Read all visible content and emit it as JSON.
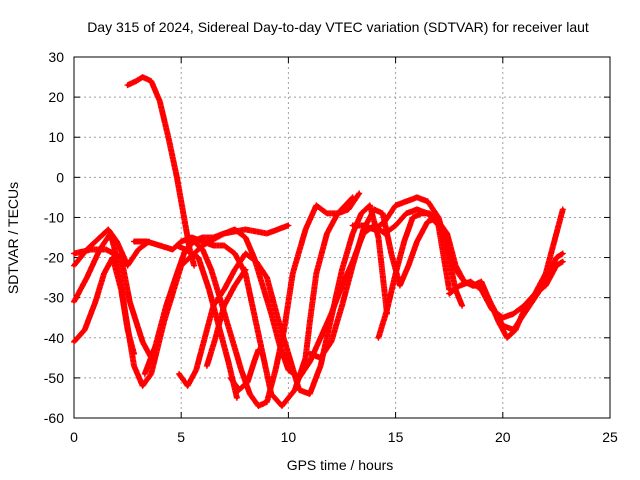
{
  "chart_data": {
    "type": "scatter",
    "title": "Day 315 of 2024, Sidereal Day-to-day VTEC variation (SDTVAR) for receiver laut",
    "xlabel": "GPS time / hours",
    "ylabel": "SDTVAR / TECUs",
    "xlim": [
      0,
      25
    ],
    "ylim": [
      -60,
      30
    ],
    "xticks": [
      0,
      5,
      10,
      15,
      20,
      25
    ],
    "yticks": [
      -60,
      -50,
      -40,
      -30,
      -20,
      -10,
      0,
      10,
      20,
      30
    ],
    "grid": true,
    "marker": "+",
    "color": "#ff0000",
    "series": [
      {
        "name": "track-1",
        "x": [
          0.0,
          0.5,
          1.0,
          1.4,
          1.8,
          2.2,
          2.5,
          2.8
        ],
        "y": [
          -41,
          -38,
          -31,
          -24,
          -20,
          -28,
          -38,
          -44
        ]
      },
      {
        "name": "track-2",
        "x": [
          0.0,
          0.6,
          1.2,
          1.7,
          2.0,
          2.4,
          2.8,
          3.2,
          3.6,
          4.2,
          5.0,
          6.0,
          7.0,
          8.0,
          9.0,
          10.0
        ],
        "y": [
          -31,
          -25,
          -18,
          -14,
          -20,
          -34,
          -47,
          -52,
          -49,
          -36,
          -22,
          -17,
          -14,
          -13,
          -14,
          -12
        ]
      },
      {
        "name": "track-3",
        "x": [
          0.0,
          0.6,
          1.2,
          1.6,
          2.0,
          2.5,
          3.0,
          3.5
        ],
        "y": [
          -22,
          -18,
          -15,
          -13,
          -16,
          -22,
          -18,
          -16
        ]
      },
      {
        "name": "track-4",
        "x": [
          0.0,
          0.8,
          1.5,
          2.2,
          2.6,
          3.2,
          3.6
        ],
        "y": [
          -19,
          -18,
          -18,
          -20,
          -31,
          -41,
          -45
        ]
      },
      {
        "name": "track-5",
        "x": [
          2.5,
          2.9,
          3.2,
          3.6,
          4.0,
          4.4,
          4.8,
          5.0,
          5.2,
          5.4,
          5.6
        ],
        "y": [
          23,
          24,
          25,
          24,
          19,
          10,
          0,
          -6,
          -12,
          -18,
          -22
        ]
      },
      {
        "name": "track-6",
        "x": [
          2.8,
          3.4,
          4.0,
          4.6,
          5.0,
          5.5,
          6.0,
          6.5,
          7.0,
          7.5,
          8.0,
          8.4,
          8.8,
          9.2,
          9.7,
          10.3,
          10.8,
          11.0,
          11.3,
          11.8,
          12.3,
          13.0
        ],
        "y": [
          -16,
          -16,
          -17,
          -18,
          -16,
          -15,
          -16,
          -17,
          -17,
          -19,
          -24,
          -34,
          -44,
          -54,
          -57,
          -53,
          -45,
          -36,
          -24,
          -14,
          -9,
          -5
        ]
      },
      {
        "name": "track-7",
        "x": [
          3.3,
          3.8,
          4.3,
          4.8,
          5.2,
          5.6,
          6.0,
          6.4,
          6.8,
          7.3,
          7.8,
          8.2,
          8.6,
          9.0,
          9.4,
          9.8,
          10.2,
          10.8,
          11.3,
          11.8,
          12.3,
          12.8,
          13.3
        ],
        "y": [
          -49,
          -42,
          -32,
          -24,
          -18,
          -16,
          -18,
          -23,
          -30,
          -39,
          -48,
          -54,
          -57,
          -56,
          -48,
          -38,
          -24,
          -13,
          -7,
          -9,
          -9,
          -8,
          -4
        ]
      },
      {
        "name": "track-8",
        "x": [
          4.9,
          5.3,
          5.7,
          6.1,
          6.5,
          7.0,
          7.5,
          8.0,
          8.5,
          9.0,
          9.5,
          10.0,
          10.5,
          11.0,
          11.5,
          12.0,
          12.5,
          13.0,
          13.4,
          13.8,
          14.2,
          14.6
        ],
        "y": [
          -49,
          -52,
          -48,
          -40,
          -32,
          -28,
          -23,
          -19,
          -21,
          -25,
          -35,
          -44,
          -53,
          -54,
          -47,
          -35,
          -23,
          -14,
          -9,
          -7,
          -15,
          -34
        ]
      },
      {
        "name": "track-9",
        "x": [
          4.8,
          5.2,
          5.8,
          6.3,
          6.8,
          7.2,
          7.6
        ],
        "y": [
          -17,
          -18,
          -20,
          -28,
          -38,
          -46,
          -55
        ]
      },
      {
        "name": "track-10",
        "x": [
          7.3,
          7.7,
          8.1,
          8.4,
          8.6
        ],
        "y": [
          -50,
          -53,
          -51,
          -46,
          -43
        ]
      },
      {
        "name": "track-11",
        "x": [
          6.2,
          6.6,
          7.0,
          7.5,
          8.0
        ],
        "y": [
          -47,
          -40,
          -32,
          -27,
          -23
        ]
      },
      {
        "name": "track-12",
        "x": [
          5.5,
          6.0,
          6.5,
          7.0,
          7.5,
          8.0,
          8.4,
          8.8,
          9.2,
          9.6,
          10.0,
          10.5,
          11.0,
          11.5,
          12.0,
          12.5,
          13.0,
          13.5,
          14.0,
          14.5,
          15.0,
          15.5,
          16.0,
          16.5,
          17.0,
          17.5
        ],
        "y": [
          -16,
          -15,
          -15,
          -14,
          -13,
          -15,
          -20,
          -27,
          -34,
          -42,
          -48,
          -50,
          -46,
          -40,
          -34,
          -27,
          -21,
          -14,
          -12,
          -14,
          -12,
          -9,
          -8,
          -9,
          -12,
          -28
        ]
      },
      {
        "name": "track-13",
        "x": [
          11.0,
          11.5,
          12.0,
          12.5,
          13.0,
          13.5,
          14.0,
          14.4,
          14.8,
          15.2,
          15.6,
          16.0,
          16.5,
          17.0,
          17.4,
          17.8,
          18.1
        ],
        "y": [
          -44,
          -45,
          -41,
          -32,
          -22,
          -13,
          -8,
          -9,
          -19,
          -27,
          -22,
          -16,
          -11,
          -10,
          -18,
          -28,
          -32
        ]
      },
      {
        "name": "track-14",
        "x": [
          13.0,
          13.5,
          14.0,
          14.5,
          15.0,
          15.5,
          16.0,
          16.5,
          17.0,
          17.4,
          17.8,
          18.2,
          18.6,
          19.0,
          19.5,
          20.0,
          20.5,
          21.0,
          21.5,
          22.0,
          22.5,
          22.8
        ],
        "y": [
          -12,
          -12,
          -13,
          -11,
          -7,
          -6,
          -5,
          -6,
          -10,
          -18,
          -23,
          -26,
          -27,
          -27,
          -32,
          -37,
          -38,
          -34,
          -30,
          -26,
          -20,
          -19
        ]
      },
      {
        "name": "track-15",
        "x": [
          14.2,
          14.6,
          15.0,
          15.4,
          15.8,
          16.2,
          16.6,
          17.0,
          17.4,
          17.8,
          18.2,
          18.6,
          19.0,
          19.4,
          19.8,
          20.2,
          20.6,
          21.0,
          21.5,
          22.0,
          22.5,
          22.8
        ],
        "y": [
          -40,
          -33,
          -24,
          -16,
          -10,
          -9,
          -9,
          -11,
          -14,
          -22,
          -26,
          -27,
          -26,
          -31,
          -36,
          -40,
          -38,
          -33,
          -29,
          -24,
          -14,
          -8
        ]
      },
      {
        "name": "track-16",
        "x": [
          17.5,
          18.0,
          18.5,
          19.0,
          19.5,
          20.0,
          20.5,
          21.0,
          21.5,
          22.0,
          22.5,
          22.8
        ],
        "y": [
          -29,
          -27,
          -26,
          -28,
          -33,
          -35,
          -34,
          -32,
          -29,
          -27,
          -22,
          -21
        ]
      }
    ]
  }
}
